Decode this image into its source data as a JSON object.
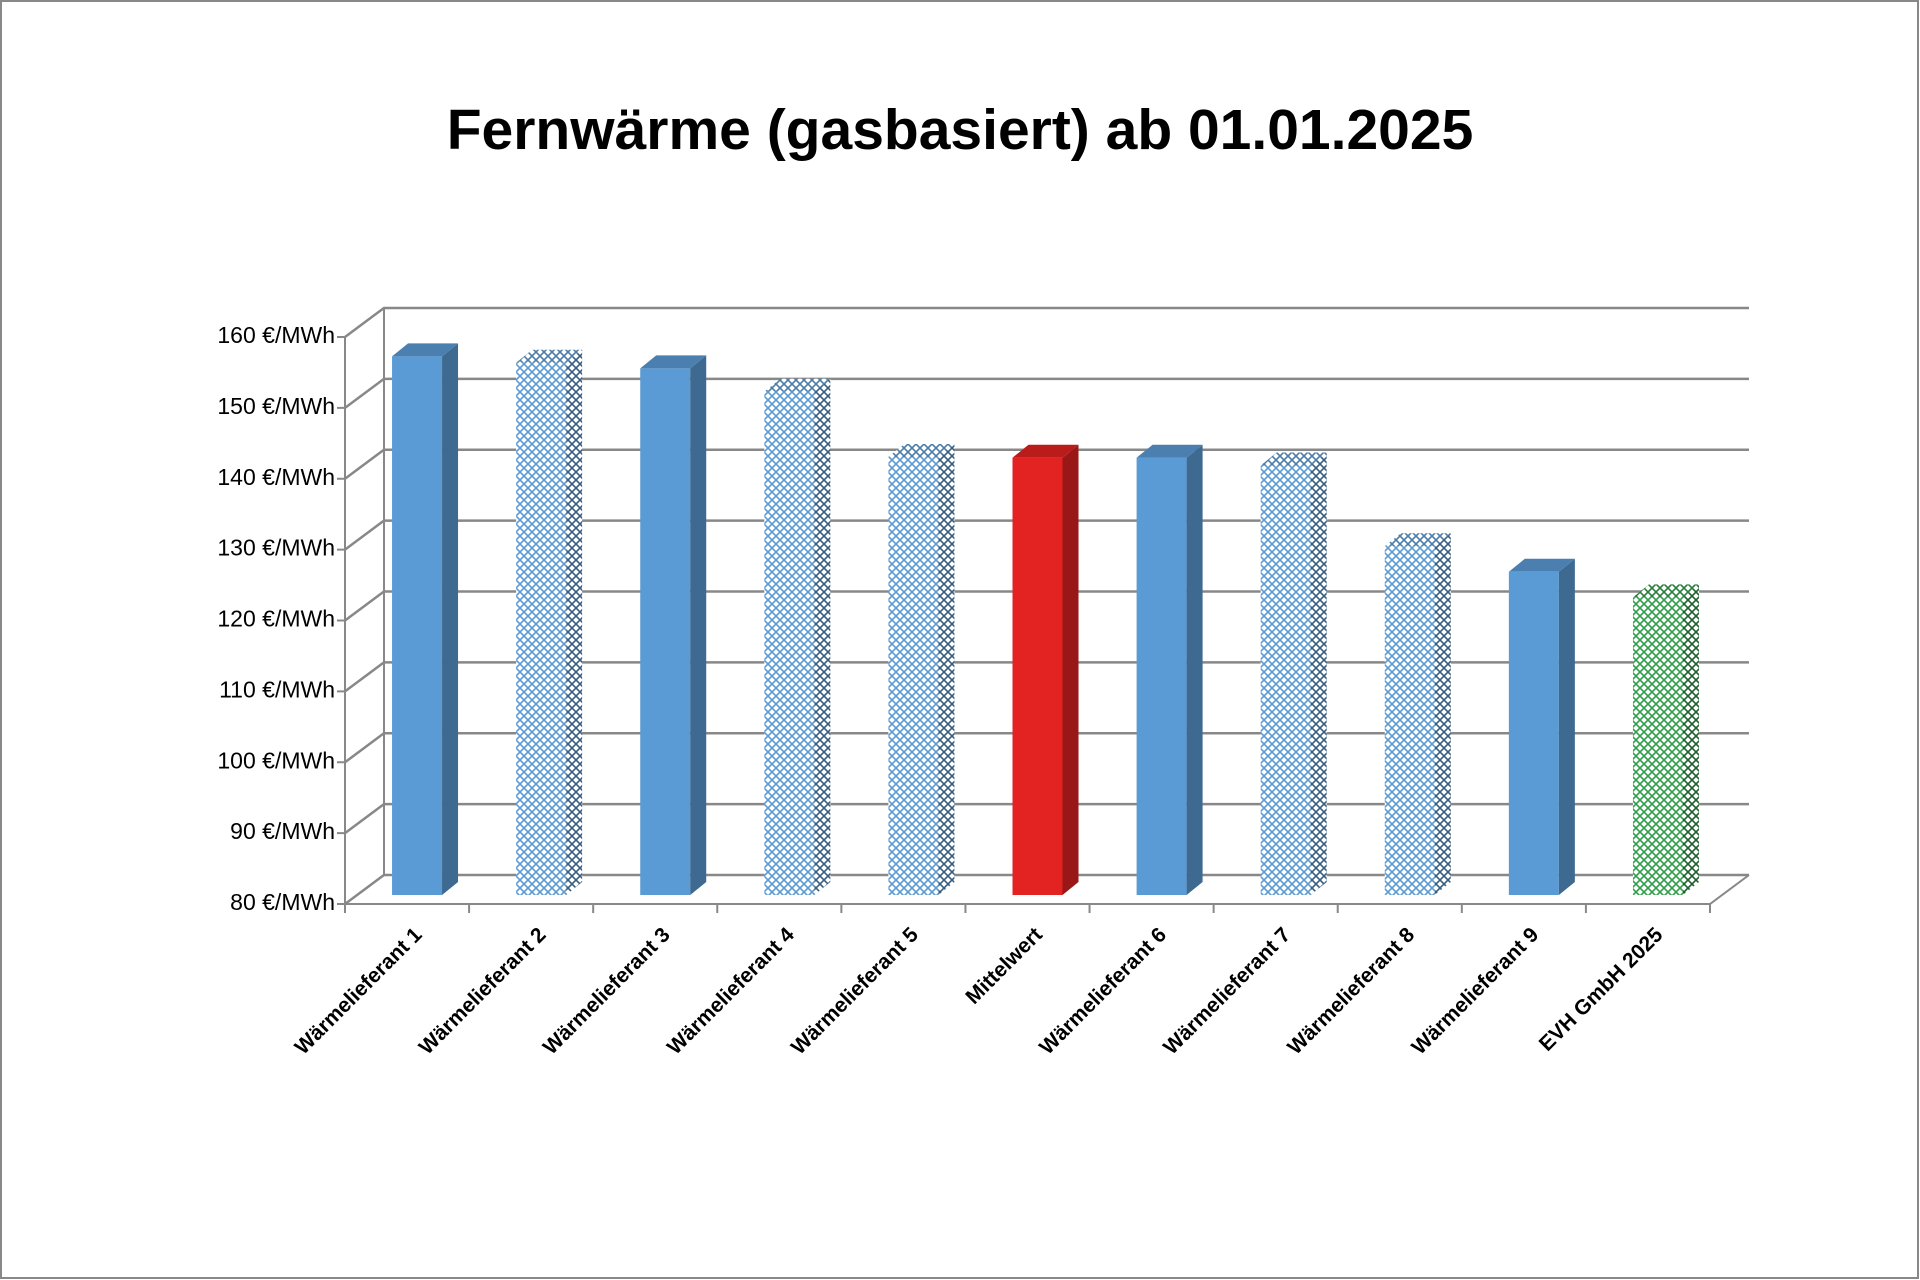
{
  "chart_data": {
    "type": "bar3d",
    "title": "Fernwärme (gasbasiert) ab 01.01.2025",
    "categories": [
      "Wärmelieferant 1",
      "Wärmelieferant 2",
      "Wärmelieferant 3",
      "Wärmelieferant 4",
      "Wärmelieferant 5",
      "Mittelwert",
      "Wärmelieferant 6",
      "Wärmelieferant 7",
      "Wärmelieferant 8",
      "Wärmelieferant 9",
      "EVH GmbH 2025"
    ],
    "values": [
      156,
      155.1,
      154.3,
      151,
      141.8,
      141.7,
      141.7,
      140.6,
      129.2,
      125.6,
      122
    ],
    "colors": [
      "#5b9bd5",
      "#5b9bd5",
      "#5b9bd5",
      "#5b9bd5",
      "#5b9bd5",
      "#e32222",
      "#5b9bd5",
      "#5b9bd5",
      "#5b9bd5",
      "#5b9bd5",
      "#2e9e48"
    ],
    "patterned": [
      false,
      true,
      false,
      true,
      true,
      false,
      false,
      true,
      true,
      false,
      true
    ],
    "ylim": [
      80,
      160
    ],
    "yticks": [
      {
        "value": 80,
        "label": "80 €/MWh"
      },
      {
        "value": 90,
        "label": "90 €/MWh"
      },
      {
        "value": 100,
        "label": "100 €/MWh"
      },
      {
        "value": 110,
        "label": "110 €/MWh"
      },
      {
        "value": 120,
        "label": "120 €/MWh"
      },
      {
        "value": 130,
        "label": "130 €/MWh"
      },
      {
        "value": 140,
        "label": "140 €/MWh"
      },
      {
        "value": 150,
        "label": "150 €/MWh"
      },
      {
        "value": 160,
        "label": "160 €/MWh"
      }
    ],
    "grid": true
  }
}
